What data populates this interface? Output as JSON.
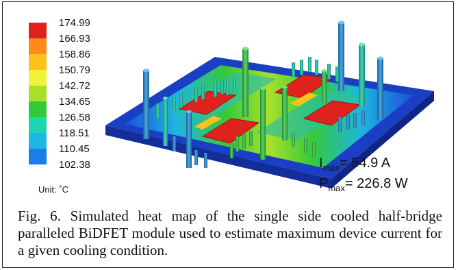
{
  "legend": {
    "ticks": [
      "174.99",
      "166.93",
      "158.86",
      "150.79",
      "142.72",
      "134.65",
      "126.58",
      "118.51",
      "110.45",
      "102.38"
    ],
    "colors": [
      "#e0221c",
      "#ff8a1a",
      "#ffc21a",
      "#f2f23a",
      "#a9e02a",
      "#35c93a",
      "#1fd6b4",
      "#1fb6e0",
      "#1a7ee6",
      "#1a36d9"
    ],
    "unit": "Unit: ˚C"
  },
  "results": {
    "imax_main": "I",
    "imax_sub": "max",
    "imax_value": "= 54.9 A",
    "pmax_main": "P",
    "pmax_sub": "max",
    "pmax_value": "= 226.8 W"
  },
  "caption": "Fig. 6. Simulated heat map of the single side cooled half-bridge paralleled BiDFET module used to estimate maximum device current for a given cooling condition."
}
